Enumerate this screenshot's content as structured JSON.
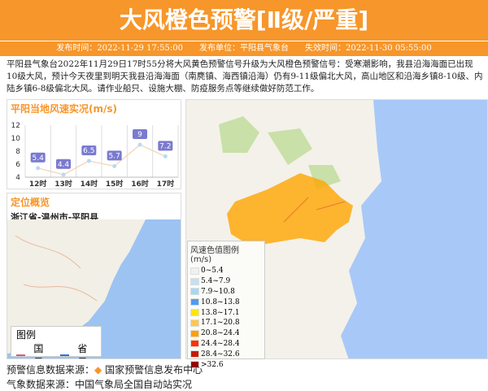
{
  "header": {
    "title": "大风橙色预警[Ⅱ级/严重]",
    "publish_time": "发布时间：2022-11-29 17:55:00",
    "publisher": "发布单位：平阳县气象台",
    "expire_time": "失效时间：2022-11-30 05:55:00"
  },
  "description": "平阳县气象台2022年11月29日17时55分将大风黄色预警信号升级为大风橙色预警信号：受寒潮影响，我县沿海海面已出现10级大风，预计今天夜里到明天我县沿海海面（南麂镇、海西镇沿海）仍有9-11级偏北大风，高山地区和沿海乡镇8-10级、内陆乡镇6-8级偏北大风。请作业船只、设施大棚、防疫服务点等继续做好防范工作。",
  "chart_data": {
    "type": "line",
    "title": "平阳当地风速实况(m/s)",
    "categories": [
      "12时",
      "13时",
      "14时",
      "15时",
      "16时",
      "17时"
    ],
    "values": [
      5.4,
      4.4,
      6.5,
      5.7,
      9,
      7.2
    ],
    "yticks": [
      "4",
      "6",
      "8",
      "10",
      "12"
    ],
    "ylim": [
      4,
      12
    ],
    "grid": true
  },
  "location": {
    "title": "定位概览",
    "path": "浙江省-温州市-平阳县",
    "legend_title": "图例",
    "national_border": "国界",
    "province_border": "省界",
    "colors": {
      "national": "#d0607a",
      "province": "#2a6fe0"
    }
  },
  "map_legend": {
    "title": "风速色值图例 (m/s)",
    "items": [
      {
        "label": "0~5.4",
        "color": "#f0f0f0"
      },
      {
        "label": "5.4~7.9",
        "color": "#c8dff0"
      },
      {
        "label": "7.9~10.8",
        "color": "#a6d8f5"
      },
      {
        "label": "10.8~13.8",
        "color": "#4f9bf5"
      },
      {
        "label": "13.8~17.1",
        "color": "#ffe600"
      },
      {
        "label": "17.1~20.8",
        "color": "#ffc84a"
      },
      {
        "label": "20.8~24.4",
        "color": "#ffa000"
      },
      {
        "label": "24.4~28.4",
        "color": "#ff3000"
      },
      {
        "label": "28.4~32.6",
        "color": "#c81a00"
      },
      {
        "label": ">32.6",
        "color": "#960000"
      }
    ]
  },
  "footer": {
    "source_label": "预警信息数据来源：",
    "source_name": "国家预警信息发布中心",
    "weather_source": "气象数据来源：中国气象局全国自动站实况"
  }
}
